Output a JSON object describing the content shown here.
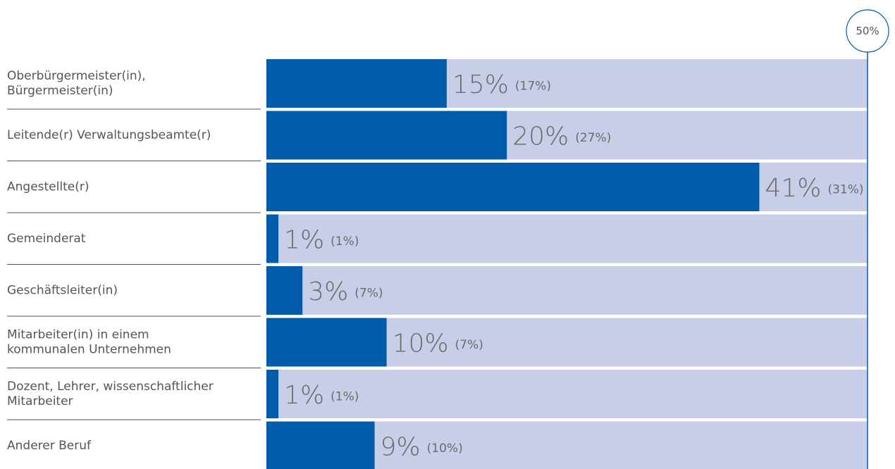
{
  "chart_data": {
    "type": "bar",
    "orientation": "horizontal",
    "categories": [
      [
        "Oberbürgermeister(in),",
        "Bürgermeister(in)"
      ],
      [
        "Leitende(r) Verwaltungsbeamte(r)"
      ],
      [
        "Angestellte(r)"
      ],
      [
        "Gemeinderat"
      ],
      [
        "Geschäftsleiter(in)"
      ],
      [
        "Mitarbeiter(in) in einem",
        "kommunalen Unternehmen"
      ],
      [
        "Dozent, Lehrer, wissenschaftlicher",
        "Mitarbeiter"
      ],
      [
        "Anderer Beruf"
      ]
    ],
    "values": [
      15,
      20,
      41,
      1,
      3,
      10,
      1,
      9
    ],
    "value_labels": [
      "15%",
      "20%",
      "41%",
      "1%",
      "3%",
      "10%",
      "1%",
      "9%"
    ],
    "previous_labels": [
      "(17%)",
      "(27%)",
      "(31%)",
      "(1%)",
      "(7%)",
      "(7%)",
      "(1%)",
      "(10%)"
    ],
    "xlim": [
      0,
      50
    ],
    "max_marker_label": "50%",
    "colors": {
      "bar": "#005baa",
      "track": "#c8cde8",
      "marker_line": "#005baa",
      "separator": "#555555",
      "text": "#555555",
      "value_text": "#6b6b6b"
    }
  }
}
